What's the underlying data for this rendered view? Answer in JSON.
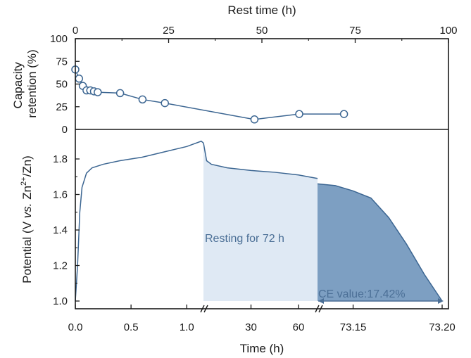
{
  "chart_data": [
    {
      "type": "line",
      "panel": "top",
      "xlabel": "Rest time (h)",
      "ylabel": "Capacity retention (%)",
      "xlim": [
        0,
        100
      ],
      "ylim": [
        0,
        100
      ],
      "xticks": [
        "0",
        "25",
        "50",
        "75",
        "100"
      ],
      "yticks": [
        "0",
        "25",
        "50",
        "75",
        "100"
      ],
      "grid": false,
      "series": [
        {
          "x": [
            0,
            1,
            2,
            3,
            4,
            5,
            6,
            12,
            18,
            24,
            48,
            60,
            72
          ],
          "y": [
            66,
            56,
            48,
            43,
            43,
            42,
            41,
            40,
            33,
            29,
            11,
            17,
            17
          ]
        }
      ]
    },
    {
      "type": "area",
      "panel": "bottom",
      "xlabel": "Time (h)",
      "ylabel_parts": [
        "Potential (V ",
        "vs.",
        " Zn",
        "2+",
        "/Zn)"
      ],
      "ylim": [
        1.0,
        1.9
      ],
      "xticks": [
        "0.0",
        "0.5",
        "1.0",
        "30",
        "60",
        "73.15",
        "73.20"
      ],
      "yticks": [
        "1.0",
        "1.2",
        "1.4",
        "1.6",
        "1.8"
      ],
      "grid": false,
      "segments": [
        {
          "name": "charge",
          "x_units": "h",
          "x_range": [
            0.0,
            1.15
          ],
          "points": [
            [
              0.0,
              1.0
            ],
            [
              0.02,
              1.2
            ],
            [
              0.04,
              1.5
            ],
            [
              0.06,
              1.64
            ],
            [
              0.1,
              1.72
            ],
            [
              0.15,
              1.75
            ],
            [
              0.25,
              1.77
            ],
            [
              0.4,
              1.79
            ],
            [
              0.6,
              1.81
            ],
            [
              0.8,
              1.84
            ],
            [
              1.0,
              1.87
            ],
            [
              1.13,
              1.9
            ],
            [
              1.15,
              1.89
            ]
          ]
        },
        {
          "name": "rest",
          "x_units": "h",
          "x_range": [
            0,
            72
          ],
          "points": [
            [
              0,
              1.89
            ],
            [
              2,
              1.79
            ],
            [
              5,
              1.77
            ],
            [
              15,
              1.75
            ],
            [
              30,
              1.735
            ],
            [
              45,
              1.725
            ],
            [
              60,
              1.71
            ],
            [
              72,
              1.69
            ]
          ]
        },
        {
          "name": "discharge",
          "x_units": "h",
          "x_range": [
            73.13,
            73.2
          ],
          "points": [
            [
              73.13,
              1.66
            ],
            [
              73.14,
              1.65
            ],
            [
              73.15,
              1.62
            ],
            [
              73.16,
              1.58
            ],
            [
              73.17,
              1.47
            ],
            [
              73.18,
              1.32
            ],
            [
              73.19,
              1.15
            ],
            [
              73.2,
              1.0
            ]
          ]
        }
      ],
      "annotations": [
        "Resting for 72 h",
        "CE value:17.42%"
      ]
    }
  ],
  "colors": {
    "line": "#3c6692",
    "rest_fill": "#dfe9f4",
    "discharge_fill": "#7d9fc2",
    "axis": "#1a1a1a",
    "annotation": "#4b6f96"
  }
}
